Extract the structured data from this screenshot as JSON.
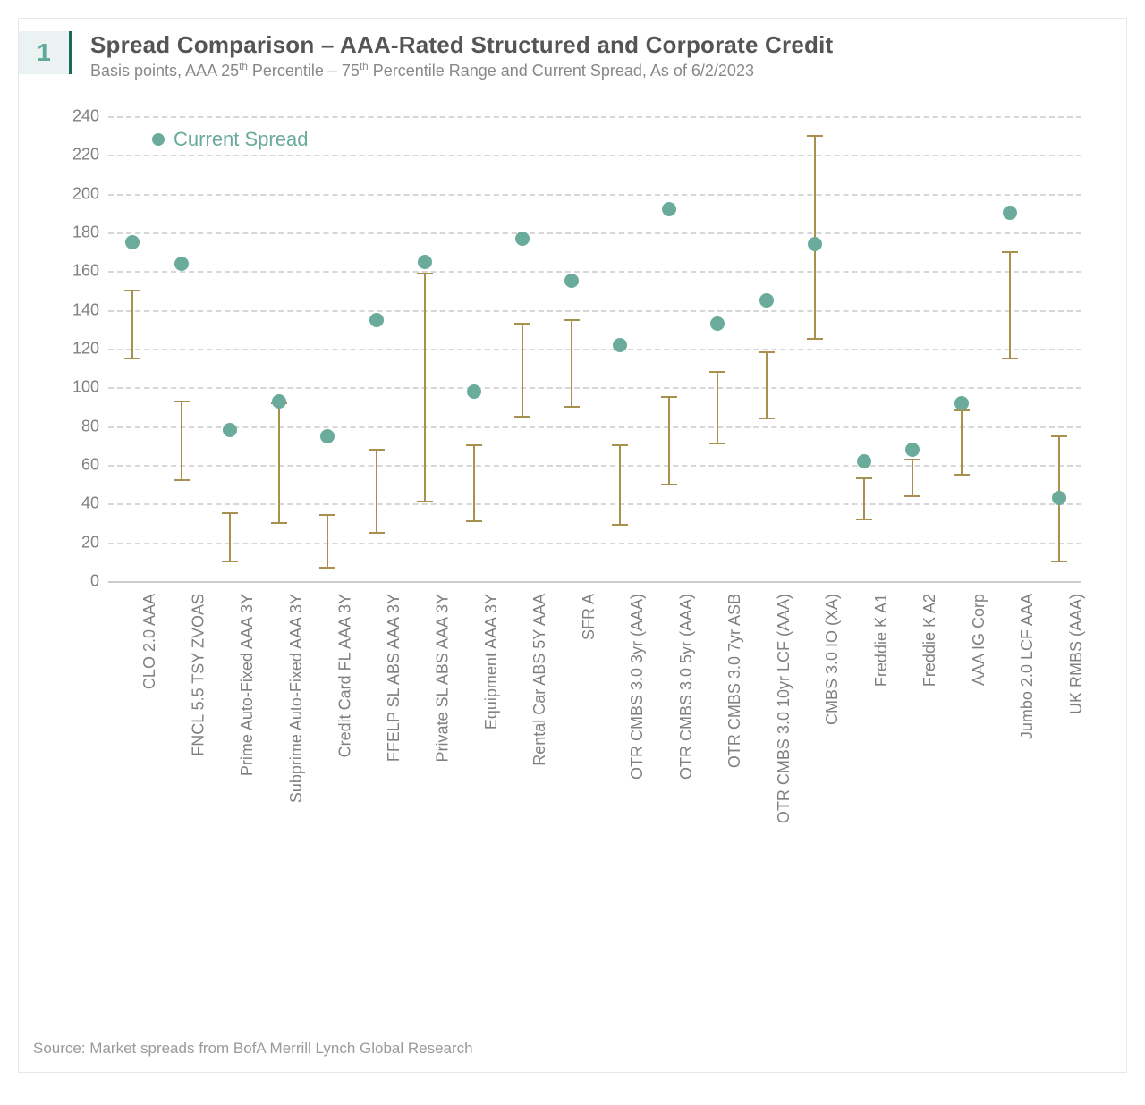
{
  "badge": "1",
  "title": "Spread Comparison – AAA-Rated Structured and Corporate Credit",
  "subtitle_pre": "Basis points, AAA 25",
  "subtitle_mid1": " Percentile – 75",
  "subtitle_mid2": " Percentile Range and Current Spread, As of 6/2/2023",
  "sup_th": "th",
  "legend": {
    "label": "Current Spread",
    "color": "#6aab9c"
  },
  "source": "Source: Market spreads from BofA Merrill Lynch Global Research",
  "chart": {
    "ylim": [
      0,
      240
    ],
    "ytick_step": 20,
    "grid_color": "#d7d7d7",
    "zero_line_color": "#cccccc",
    "tick_color": "#808080",
    "bar_color": "#a8914f",
    "dot_color": "#6aab9c",
    "categories": [
      "CLO 2.0 AAA",
      "FNCL 5.5 TSY ZVOAS",
      "Prime Auto-Fixed AAA 3Y",
      "Subprime Auto-Fixed AAA 3Y",
      "Credit Card FL AAA 3Y",
      "FFELP SL ABS AAA 3Y",
      "Private SL ABS AAA 3Y",
      "Equipment AAA 3Y",
      "Rental Car ABS 5Y AAA",
      "SFR A",
      "OTR CMBS 3.0 3yr (AAA)",
      "OTR CMBS 3.0 5yr (AAA)",
      "OTR CMBS 3.0 7yr ASB",
      "OTR CMBS 3.0 10yr LCF (AAA)",
      "CMBS 3.0 IO (XA)",
      "Freddie K A1",
      "Freddie K A2",
      "AAA IG Corp",
      "Jumbo 2.0 LCF AAA",
      "UK RMBS (AAA)"
    ],
    "p25": [
      115,
      52,
      10,
      30,
      7,
      25,
      41,
      31,
      85,
      90,
      29,
      50,
      71,
      84,
      125,
      32,
      44,
      55,
      115,
      10
    ],
    "p75": [
      150,
      93,
      35,
      92,
      34,
      68,
      159,
      70,
      133,
      135,
      70,
      95,
      108,
      118,
      230,
      53,
      63,
      88,
      170,
      75
    ],
    "current": [
      175,
      164,
      78,
      93,
      75,
      135,
      165,
      98,
      177,
      155,
      122,
      192,
      133,
      145,
      174,
      62,
      68,
      92,
      190,
      43
    ]
  }
}
